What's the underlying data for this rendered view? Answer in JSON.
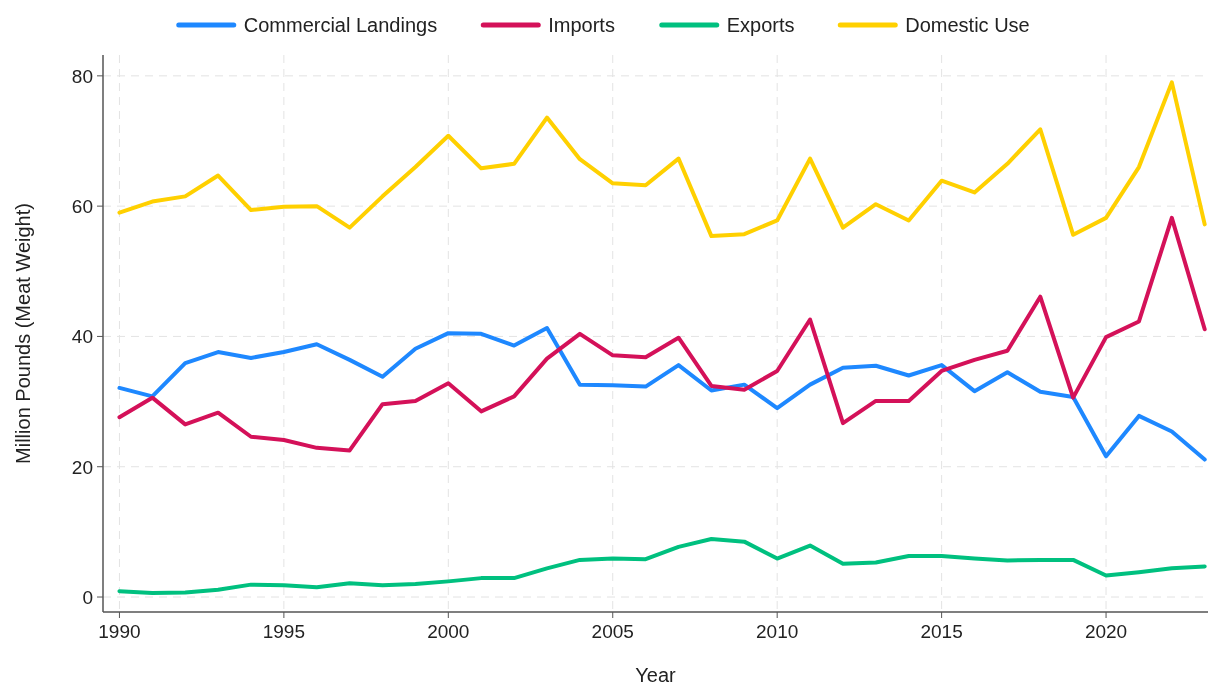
{
  "chart_data": {
    "type": "line",
    "xlabel": "Year",
    "ylabel": "Million Pounds (Meat Weight)",
    "x": [
      1990,
      1991,
      1992,
      1993,
      1994,
      1995,
      1996,
      1997,
      1998,
      1999,
      2000,
      2001,
      2002,
      2003,
      2004,
      2005,
      2006,
      2007,
      2008,
      2009,
      2010,
      2011,
      2012,
      2013,
      2014,
      2015,
      2016,
      2017,
      2018,
      2019,
      2020,
      2021,
      2022,
      2023
    ],
    "series": [
      {
        "name": "Commercial Landings",
        "color": "#1e88ff",
        "values": [
          32.1,
          30.8,
          35.9,
          37.6,
          36.7,
          37.6,
          38.8,
          36.4,
          33.8,
          38.1,
          40.5,
          40.4,
          38.6,
          41.3,
          32.6,
          32.5,
          32.3,
          35.6,
          31.7,
          32.6,
          29,
          32.6,
          35.2,
          35.5,
          34,
          35.6,
          31.6,
          34.5,
          31.5,
          30.7,
          21.6,
          27.8,
          25.4,
          21.1
        ]
      },
      {
        "name": "Imports",
        "color": "#d41159",
        "values": [
          27.6,
          30.6,
          26.5,
          28.3,
          24.6,
          24.1,
          22.9,
          22.5,
          29.6,
          30.1,
          32.8,
          28.5,
          30.8,
          36.6,
          40.4,
          37.1,
          36.8,
          39.8,
          32.4,
          31.8,
          34.7,
          42.6,
          26.7,
          30.1,
          30.1,
          34.7,
          36.4,
          37.8,
          46.1,
          30.6,
          39.9,
          42.3,
          58.2,
          41.1
        ]
      },
      {
        "name": "Exports",
        "color": "#00c07f",
        "values": [
          0.9,
          0.6,
          0.7,
          1.1,
          1.9,
          1.8,
          1.5,
          2.1,
          1.8,
          2.0,
          2.4,
          2.9,
          2.9,
          4.4,
          5.7,
          5.9,
          5.8,
          7.7,
          8.9,
          8.5,
          5.9,
          7.9,
          5.1,
          5.3,
          6.3,
          6.3,
          5.9,
          5.6,
          5.7,
          5.7,
          3.3,
          3.8,
          4.4,
          4.7
        ]
      },
      {
        "name": "Domestic Use",
        "color": "#ffd000",
        "values": [
          59,
          60.7,
          61.5,
          64.7,
          59.4,
          59.9,
          60,
          56.7,
          61.5,
          66,
          70.8,
          65.8,
          66.5,
          73.6,
          67.2,
          63.5,
          63.2,
          67.3,
          55.4,
          55.7,
          57.8,
          67.3,
          56.7,
          60.3,
          57.8,
          63.9,
          62.1,
          66.5,
          71.8,
          55.6,
          58.2,
          66,
          79,
          57.2
        ]
      }
    ],
    "xlim": [
      1989.5,
      2023.1
    ],
    "xticks": [
      1990,
      1995,
      2000,
      2005,
      2010,
      2015,
      2020
    ],
    "ylim": [
      -2.3,
      83.2
    ],
    "yticks": [
      0,
      20,
      40,
      60,
      80
    ],
    "grid": true,
    "legend": "top",
    "marker": "none",
    "line_style": "solid"
  }
}
